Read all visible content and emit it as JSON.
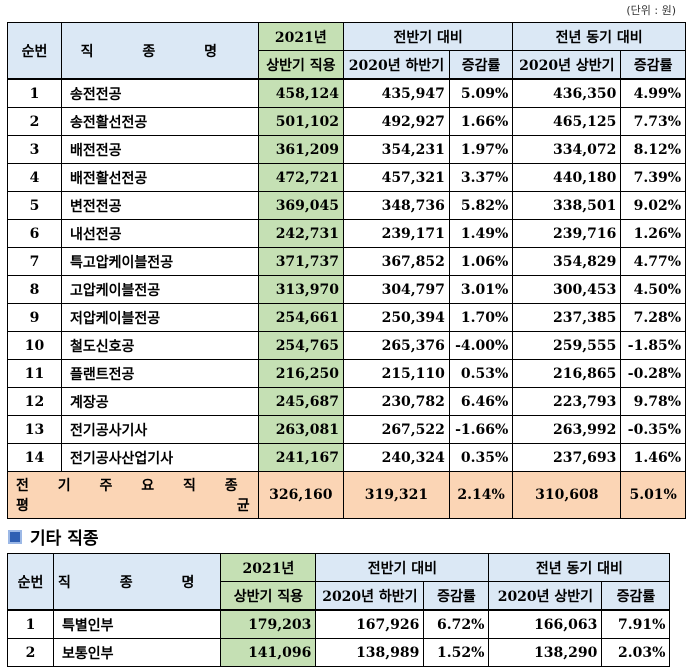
{
  "unit_note": "(단위 : 원)",
  "headers": {
    "no": "순번",
    "job": "직 종 명",
    "current_line1": "2021년",
    "current_line2": "상반기 직용",
    "prev_half_group": "전반기 대비",
    "prev_half_col": "2020년 하반기",
    "rate": "증감률",
    "prev_year_group": "전년 동기 대비",
    "prev_year_col": "2020년 상반기"
  },
  "main_rows": [
    {
      "no": "1",
      "job": "송전전공",
      "current": "458,124",
      "prev_half": "435,947",
      "rate_half": "5.09%",
      "prev_year": "436,350",
      "rate_year": "4.99%"
    },
    {
      "no": "2",
      "job": "송전활선전공",
      "current": "501,102",
      "prev_half": "492,927",
      "rate_half": "1.66%",
      "prev_year": "465,125",
      "rate_year": "7.73%"
    },
    {
      "no": "3",
      "job": "배전전공",
      "current": "361,209",
      "prev_half": "354,231",
      "rate_half": "1.97%",
      "prev_year": "334,072",
      "rate_year": "8.12%"
    },
    {
      "no": "4",
      "job": "배전활선전공",
      "current": "472,721",
      "prev_half": "457,321",
      "rate_half": "3.37%",
      "prev_year": "440,180",
      "rate_year": "7.39%"
    },
    {
      "no": "5",
      "job": "변전전공",
      "current": "369,045",
      "prev_half": "348,736",
      "rate_half": "5.82%",
      "prev_year": "338,501",
      "rate_year": "9.02%"
    },
    {
      "no": "6",
      "job": "내선전공",
      "current": "242,731",
      "prev_half": "239,171",
      "rate_half": "1.49%",
      "prev_year": "239,716",
      "rate_year": "1.26%"
    },
    {
      "no": "7",
      "job": "특고압케이블전공",
      "current": "371,737",
      "prev_half": "367,852",
      "rate_half": "1.06%",
      "prev_year": "354,829",
      "rate_year": "4.77%"
    },
    {
      "no": "8",
      "job": "고압케이블전공",
      "current": "313,970",
      "prev_half": "304,797",
      "rate_half": "3.01%",
      "prev_year": "300,453",
      "rate_year": "4.50%"
    },
    {
      "no": "9",
      "job": "저압케이블전공",
      "current": "254,661",
      "prev_half": "250,394",
      "rate_half": "1.70%",
      "prev_year": "237,385",
      "rate_year": "7.28%"
    },
    {
      "no": "10",
      "job": "철도신호공",
      "current": "254,765",
      "prev_half": "265,376",
      "rate_half": "-4.00%",
      "prev_year": "259,555",
      "rate_year": "-1.85%"
    },
    {
      "no": "11",
      "job": "플랜트전공",
      "current": "216,250",
      "prev_half": "215,110",
      "rate_half": "0.53%",
      "prev_year": "216,865",
      "rate_year": "-0.28%"
    },
    {
      "no": "12",
      "job": "계장공",
      "current": "245,687",
      "prev_half": "230,782",
      "rate_half": "6.46%",
      "prev_year": "223,793",
      "rate_year": "9.78%"
    },
    {
      "no": "13",
      "job": "전기공사기사",
      "current": "263,081",
      "prev_half": "267,522",
      "rate_half": "-1.66%",
      "prev_year": "263,992",
      "rate_year": "-0.35%"
    },
    {
      "no": "14",
      "job": "전기공사산업기사",
      "current": "241,167",
      "prev_half": "240,324",
      "rate_half": "0.35%",
      "prev_year": "237,693",
      "rate_year": "1.46%"
    }
  ],
  "summary": {
    "label_line1": "전 기 주 요 직 종",
    "label_line2_left": "평",
    "label_line2_right": "균",
    "current": "326,160",
    "prev_half": "319,321",
    "rate_half": "2.14%",
    "prev_year": "310,608",
    "rate_year": "5.01%"
  },
  "section_title": "기타 직종",
  "other_rows": [
    {
      "no": "1",
      "job": "특별인부",
      "current": "179,203",
      "prev_half": "167,926",
      "rate_half": "6.72%",
      "prev_year": "166,063",
      "rate_year": "7.91%"
    },
    {
      "no": "2",
      "job": "보통인부",
      "current": "141,096",
      "prev_half": "138,989",
      "rate_half": "1.52%",
      "prev_year": "138,290",
      "rate_year": "2.03%"
    }
  ],
  "colors": {
    "header_blue": "#dbe8f5",
    "green": "#c5e0b4",
    "summary_orange": "#fbd5b5",
    "section_icon": "#2f5fb3"
  }
}
